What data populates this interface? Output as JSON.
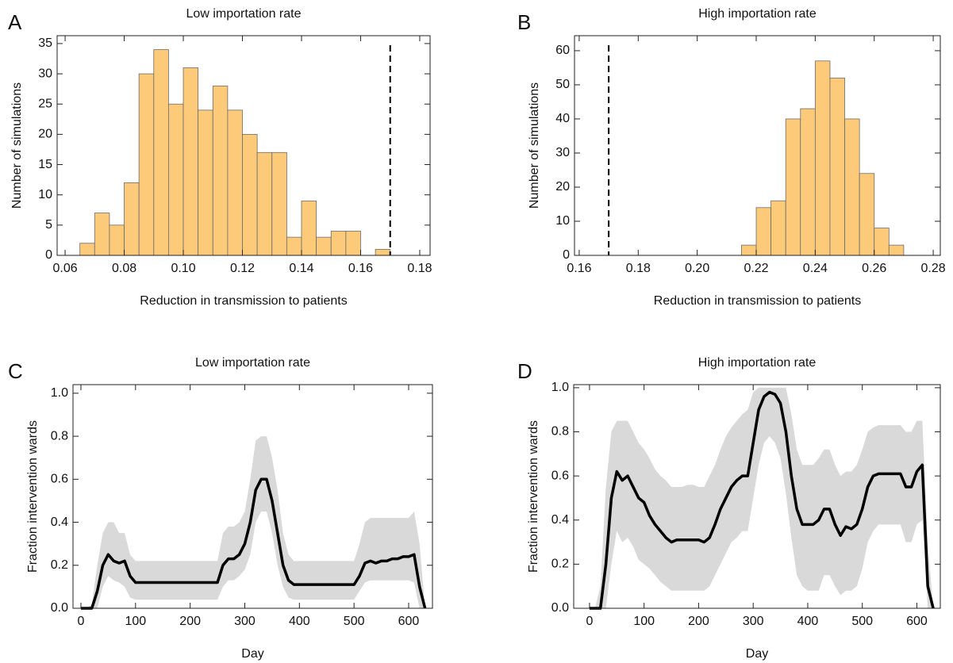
{
  "chart_data": [
    {
      "type": "histogram",
      "panel_label": "A",
      "title": "Low importation rate",
      "xlabel": "Reduction in transmission to patients",
      "ylabel": "Number of simulations",
      "bins": [
        0.065,
        0.07,
        0.075,
        0.08,
        0.085,
        0.09,
        0.095,
        0.1,
        0.105,
        0.11,
        0.115,
        0.12,
        0.125,
        0.13,
        0.135,
        0.14,
        0.145,
        0.15,
        0.155,
        0.16,
        0.165,
        0.17
      ],
      "values": [
        2,
        7,
        5,
        12,
        30,
        34,
        25,
        31,
        24,
        28,
        24,
        20,
        17,
        17,
        3,
        9,
        3,
        4,
        4,
        0,
        1
      ],
      "color": "#fdca79",
      "vline": 0.17,
      "xlim": [
        0.0573,
        0.1835
      ],
      "ylim": [
        0,
        36.3
      ],
      "xticks": [
        0.06,
        0.08,
        {
          "value": 0.1,
          "label": "0.10"
        },
        0.12,
        0.14,
        0.16,
        0.18
      ],
      "yticks": [
        0,
        5,
        10,
        15,
        20,
        25,
        30,
        35
      ]
    },
    {
      "type": "histogram",
      "panel_label": "B",
      "title": "High importation rate",
      "xlabel": "Reduction in transmission to patients",
      "ylabel": "Number of simulations",
      "bins": [
        0.215,
        0.22,
        0.225,
        0.23,
        0.235,
        0.24,
        0.245,
        0.25,
        0.255,
        0.26,
        0.265,
        0.27
      ],
      "values": [
        3,
        14,
        16,
        40,
        43,
        57,
        52,
        40,
        24,
        8,
        3
      ],
      "color": "#fdca79",
      "vline": 0.17,
      "xlim": [
        0.1584,
        0.2824
      ],
      "ylim": [
        0,
        64.4
      ],
      "xticks": [
        0.16,
        0.18,
        {
          "value": 0.2,
          "label": "0.20"
        },
        0.22,
        0.24,
        0.26,
        0.28
      ],
      "yticks": [
        0,
        10,
        20,
        30,
        40,
        50,
        60
      ]
    },
    {
      "type": "line",
      "panel_label": "C",
      "title": "Low importation rate",
      "xlabel": "Day",
      "ylabel": "Fraction intervention wards",
      "x": [
        0,
        10,
        20,
        30,
        40,
        50,
        60,
        70,
        80,
        90,
        100,
        110,
        120,
        130,
        140,
        150,
        160,
        170,
        180,
        190,
        200,
        210,
        220,
        230,
        240,
        250,
        260,
        270,
        280,
        290,
        300,
        310,
        320,
        330,
        340,
        350,
        360,
        370,
        380,
        390,
        400,
        410,
        420,
        430,
        440,
        450,
        460,
        470,
        480,
        490,
        500,
        510,
        520,
        530,
        540,
        550,
        560,
        570,
        580,
        590,
        600,
        610,
        620,
        630
      ],
      "band": {
        "color": "#d9d9d9",
        "upper": [
          0,
          0,
          0.02,
          0.2,
          0.35,
          0.4,
          0.4,
          0.35,
          0.35,
          0.25,
          0.22,
          0.22,
          0.22,
          0.22,
          0.22,
          0.22,
          0.22,
          0.22,
          0.22,
          0.22,
          0.22,
          0.22,
          0.22,
          0.22,
          0.22,
          0.22,
          0.35,
          0.38,
          0.38,
          0.4,
          0.45,
          0.6,
          0.78,
          0.8,
          0.8,
          0.7,
          0.55,
          0.35,
          0.25,
          0.22,
          0.22,
          0.22,
          0.22,
          0.22,
          0.22,
          0.22,
          0.22,
          0.22,
          0.22,
          0.22,
          0.22,
          0.3,
          0.4,
          0.42,
          0.42,
          0.42,
          0.42,
          0.42,
          0.42,
          0.42,
          0.42,
          0.45,
          0.3,
          0
        ],
        "lower": [
          0,
          0,
          0,
          0,
          0.1,
          0.15,
          0.13,
          0.12,
          0.1,
          0.05,
          0.04,
          0.04,
          0.04,
          0.04,
          0.04,
          0.04,
          0.04,
          0.04,
          0.04,
          0.04,
          0.04,
          0.04,
          0.04,
          0.04,
          0.04,
          0.04,
          0.1,
          0.13,
          0.13,
          0.15,
          0.18,
          0.25,
          0.4,
          0.45,
          0.45,
          0.35,
          0.2,
          0.1,
          0.05,
          0.04,
          0.04,
          0.04,
          0.04,
          0.04,
          0.04,
          0.04,
          0.04,
          0.04,
          0.04,
          0.04,
          0.04,
          0.08,
          0.12,
          0.13,
          0.13,
          0.13,
          0.13,
          0.13,
          0.13,
          0.13,
          0.13,
          0.12,
          0,
          0
        ]
      },
      "series": [
        {
          "color": "#000000",
          "values": [
            0,
            0,
            0,
            0.08,
            0.2,
            0.25,
            0.22,
            0.21,
            0.22,
            0.15,
            0.12,
            0.12,
            0.12,
            0.12,
            0.12,
            0.12,
            0.12,
            0.12,
            0.12,
            0.12,
            0.12,
            0.12,
            0.12,
            0.12,
            0.12,
            0.12,
            0.2,
            0.23,
            0.23,
            0.25,
            0.3,
            0.4,
            0.55,
            0.6,
            0.6,
            0.5,
            0.35,
            0.2,
            0.13,
            0.11,
            0.11,
            0.11,
            0.11,
            0.11,
            0.11,
            0.11,
            0.11,
            0.11,
            0.11,
            0.11,
            0.11,
            0.15,
            0.21,
            0.22,
            0.21,
            0.22,
            0.22,
            0.23,
            0.23,
            0.24,
            0.24,
            0.25,
            0.1,
            0
          ]
        }
      ],
      "xlim": [
        -14.5,
        643.6
      ],
      "ylim": [
        0,
        1.04
      ],
      "xticks": [
        0,
        100,
        200,
        300,
        400,
        500,
        600
      ],
      "yticks": [
        {
          "value": 0,
          "label": "0.0"
        },
        0.2,
        0.4,
        0.6,
        0.8,
        {
          "value": 1,
          "label": "1.0"
        }
      ]
    },
    {
      "type": "line",
      "panel_label": "D",
      "title": "High importation rate",
      "xlabel": "Day",
      "ylabel": "Fraction intervention wards",
      "x": [
        0,
        10,
        20,
        30,
        40,
        50,
        60,
        70,
        80,
        90,
        100,
        110,
        120,
        130,
        140,
        150,
        160,
        170,
        180,
        190,
        200,
        210,
        220,
        230,
        240,
        250,
        260,
        270,
        280,
        290,
        300,
        310,
        320,
        330,
        340,
        350,
        360,
        370,
        380,
        390,
        400,
        410,
        420,
        430,
        440,
        450,
        460,
        470,
        480,
        490,
        500,
        510,
        520,
        530,
        540,
        550,
        560,
        570,
        580,
        590,
        600,
        610,
        620,
        630
      ],
      "band": {
        "color": "#d9d9d9",
        "upper": [
          0,
          0,
          0.1,
          0.55,
          0.8,
          0.85,
          0.85,
          0.85,
          0.8,
          0.75,
          0.72,
          0.68,
          0.63,
          0.6,
          0.58,
          0.55,
          0.55,
          0.55,
          0.56,
          0.56,
          0.55,
          0.55,
          0.6,
          0.65,
          0.72,
          0.78,
          0.82,
          0.85,
          0.88,
          0.9,
          0.98,
          1,
          1,
          1,
          1,
          1,
          1,
          0.88,
          0.72,
          0.65,
          0.65,
          0.65,
          0.68,
          0.72,
          0.72,
          0.65,
          0.6,
          0.62,
          0.62,
          0.65,
          0.72,
          0.8,
          0.82,
          0.83,
          0.83,
          0.83,
          0.83,
          0.83,
          0.8,
          0.8,
          0.85,
          0.85,
          0.3,
          0
        ],
        "lower": [
          0,
          0,
          0,
          0,
          0.2,
          0.35,
          0.3,
          0.32,
          0.28,
          0.22,
          0.2,
          0.18,
          0.15,
          0.12,
          0.1,
          0.08,
          0.08,
          0.08,
          0.08,
          0.08,
          0.08,
          0.08,
          0.1,
          0.15,
          0.2,
          0.25,
          0.3,
          0.32,
          0.35,
          0.35,
          0.5,
          0.65,
          0.75,
          0.78,
          0.75,
          0.68,
          0.52,
          0.32,
          0.15,
          0.1,
          0.08,
          0.08,
          0.08,
          0.15,
          0.15,
          0.1,
          0.06,
          0.08,
          0.08,
          0.1,
          0.18,
          0.3,
          0.35,
          0.38,
          0.38,
          0.38,
          0.38,
          0.38,
          0.3,
          0.3,
          0.38,
          0.4,
          0,
          0
        ]
      },
      "series": [
        {
          "color": "#000000",
          "values": [
            0,
            0,
            0,
            0.2,
            0.5,
            0.62,
            0.58,
            0.6,
            0.55,
            0.5,
            0.48,
            0.42,
            0.38,
            0.35,
            0.32,
            0.3,
            0.31,
            0.31,
            0.31,
            0.31,
            0.31,
            0.3,
            0.32,
            0.38,
            0.45,
            0.5,
            0.55,
            0.58,
            0.6,
            0.6,
            0.75,
            0.9,
            0.96,
            0.98,
            0.97,
            0.93,
            0.8,
            0.6,
            0.45,
            0.38,
            0.38,
            0.38,
            0.4,
            0.45,
            0.45,
            0.38,
            0.33,
            0.37,
            0.36,
            0.38,
            0.45,
            0.55,
            0.6,
            0.61,
            0.61,
            0.61,
            0.61,
            0.61,
            0.55,
            0.55,
            0.62,
            0.65,
            0.1,
            0
          ]
        }
      ],
      "xlim": [
        -29,
        643
      ],
      "ylim": [
        0,
        1.014
      ],
      "xticks": [
        0,
        100,
        200,
        300,
        400,
        500,
        600
      ],
      "yticks": [
        {
          "value": 0,
          "label": "0.0"
        },
        0.2,
        0.4,
        0.6,
        0.8,
        {
          "value": 1,
          "label": "1.0"
        }
      ]
    }
  ]
}
